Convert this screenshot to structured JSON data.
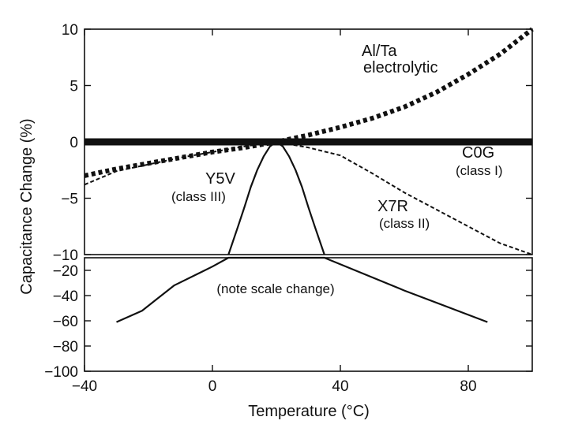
{
  "chart_data": {
    "type": "line",
    "xlabel": "Temperature (°C)",
    "ylabel": "Capacitance Change (%)",
    "xlim": [
      -40,
      100
    ],
    "x_ticks": [
      "-40",
      "0",
      "40",
      "80"
    ],
    "panels": [
      {
        "name": "upper",
        "ylim": [
          -10,
          10
        ],
        "y_ticks": [
          "10",
          "5",
          "0",
          "-5",
          "-10"
        ]
      },
      {
        "name": "lower",
        "ylim": [
          -100,
          -10
        ],
        "y_ticks": [
          "-20",
          "-40",
          "-60",
          "-80",
          "-100"
        ]
      }
    ],
    "series": [
      {
        "name": "C0G",
        "sublabel": "(class I)",
        "style": "thick-solid",
        "panel": "upper",
        "x": [
          -40,
          100
        ],
        "y": [
          0,
          0
        ]
      },
      {
        "name": "Al/Ta",
        "sublabel": "electrolytic",
        "style": "thick-dotted",
        "panel": "upper",
        "x": [
          -40,
          -30,
          -20,
          -10,
          0,
          10,
          20,
          30,
          40,
          50,
          60,
          70,
          80,
          90,
          100
        ],
        "y": [
          -3,
          -2.4,
          -1.9,
          -1.4,
          -0.9,
          -0.5,
          0,
          0.6,
          1.3,
          2.1,
          3.1,
          4.4,
          6.0,
          7.8,
          10.0
        ]
      },
      {
        "name": "X7R",
        "sublabel": "(class II)",
        "style": "thin-dashed",
        "panel": "upper",
        "x": [
          -40,
          -30,
          -20,
          -10,
          0,
          10,
          20,
          30,
          40,
          50,
          60,
          70,
          80,
          90,
          100
        ],
        "y": [
          -3.8,
          -2.6,
          -2.0,
          -1.4,
          -0.9,
          -0.4,
          0,
          -0.5,
          -1.2,
          -2.8,
          -4.5,
          -6.0,
          -7.5,
          -9.0,
          -10.0
        ]
      },
      {
        "name": "Y5V",
        "sublabel": "(class III)",
        "style": "solid",
        "panel": "upper",
        "x": [
          5,
          8,
          10,
          12,
          14,
          16,
          18,
          20,
          22,
          24,
          26,
          28,
          30,
          32,
          35
        ],
        "y": [
          -10,
          -7.5,
          -5.8,
          -4.0,
          -2.5,
          -1.3,
          -0.4,
          0,
          -0.4,
          -1.3,
          -2.5,
          -4.0,
          -5.8,
          -7.5,
          -10
        ]
      },
      {
        "name": "Y5V-lower",
        "style": "solid",
        "panel": "lower",
        "x": [
          -30,
          -22,
          -12,
          0,
          5,
          35,
          60,
          86
        ],
        "y": [
          -61,
          -52,
          -32,
          -17,
          -10,
          -10,
          -36,
          -61
        ]
      }
    ],
    "annotations": [
      "(note scale change)"
    ],
    "grid": false,
    "legend": "none"
  }
}
